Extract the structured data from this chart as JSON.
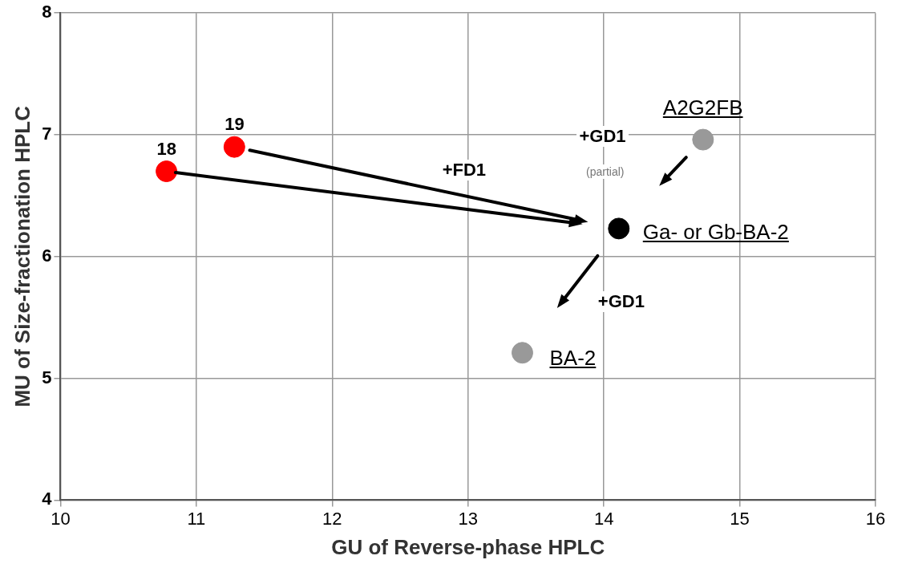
{
  "chart_data": {
    "type": "scatter",
    "xlabel": "GU of Reverse-phase HPLC",
    "ylabel": "MU of Size-fractionation HPLC",
    "xlim": [
      10,
      16
    ],
    "xticks": [
      10,
      11,
      12,
      13,
      14,
      15,
      16
    ],
    "ylim": [
      4,
      8
    ],
    "yticks": [
      4,
      5,
      6,
      7,
      8
    ],
    "grid": true,
    "legend": false,
    "marker": "circle",
    "series": [
      {
        "name": "18",
        "color": "#ff0000",
        "x": [
          10.78
        ],
        "values": [
          6.7
        ]
      },
      {
        "name": "19",
        "color": "#ff0000",
        "x": [
          11.28
        ],
        "values": [
          6.9
        ]
      },
      {
        "name": "A2G2FB",
        "color": "#999999",
        "x": [
          14.73
        ],
        "values": [
          6.96
        ]
      },
      {
        "name": "Ga- or Gb-BA-2",
        "color": "#000000",
        "x": [
          14.11
        ],
        "values": [
          6.23
        ]
      },
      {
        "name": "BA-2",
        "color": "#999999",
        "x": [
          13.4
        ],
        "values": [
          5.21
        ]
      }
    ],
    "annotations": [
      "+FD1",
      "+GD1",
      "(partial)",
      "+GD1"
    ]
  }
}
